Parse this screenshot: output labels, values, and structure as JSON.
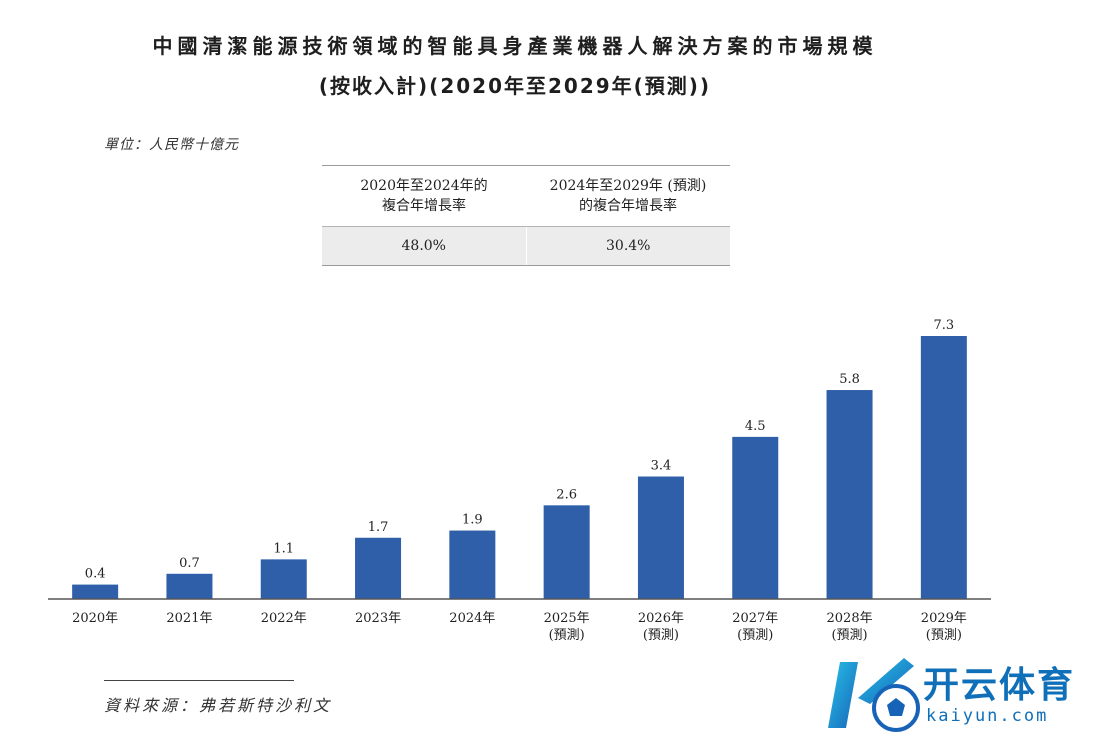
{
  "title_line1": "中國清潔能源技術領域的智能具身產業機器人解決方案的市場規模",
  "title_line2": "(按收入計)(2020年至2029年(預測))",
  "unit_label": "單位：人民幣十億元",
  "cagr_table": {
    "headers": [
      [
        "2020年至2024年的",
        "複合年增長率"
      ],
      [
        "2024年至2029年 (預測)",
        "的複合年增長率"
      ]
    ],
    "values": [
      "48.0%",
      "30.4%"
    ]
  },
  "source_label": "資料來源：弗若斯特沙利文",
  "watermark": {
    "brand": "开云体育",
    "url": "kaiyun.com"
  },
  "chart_data": {
    "type": "bar",
    "categories": [
      "2020年",
      "2021年",
      "2022年",
      "2023年",
      "2024年",
      "2025年",
      "2026年",
      "2027年",
      "2028年",
      "2029年"
    ],
    "sublabels": [
      "",
      "",
      "",
      "",
      "",
      "(預測)",
      "(預測)",
      "(預測)",
      "(預測)",
      "(預測)"
    ],
    "values": [
      0.4,
      0.7,
      1.1,
      1.7,
      1.9,
      2.6,
      3.4,
      4.5,
      5.8,
      7.3
    ],
    "value_labels": [
      "0.4",
      "0.7",
      "1.1",
      "1.7",
      "1.9",
      "2.6",
      "3.4",
      "4.5",
      "5.8",
      "7.3"
    ],
    "bar_color": "#2e5fa8",
    "ylim": [
      0,
      7.3
    ],
    "grid": false,
    "xlabel": "",
    "ylabel": ""
  }
}
